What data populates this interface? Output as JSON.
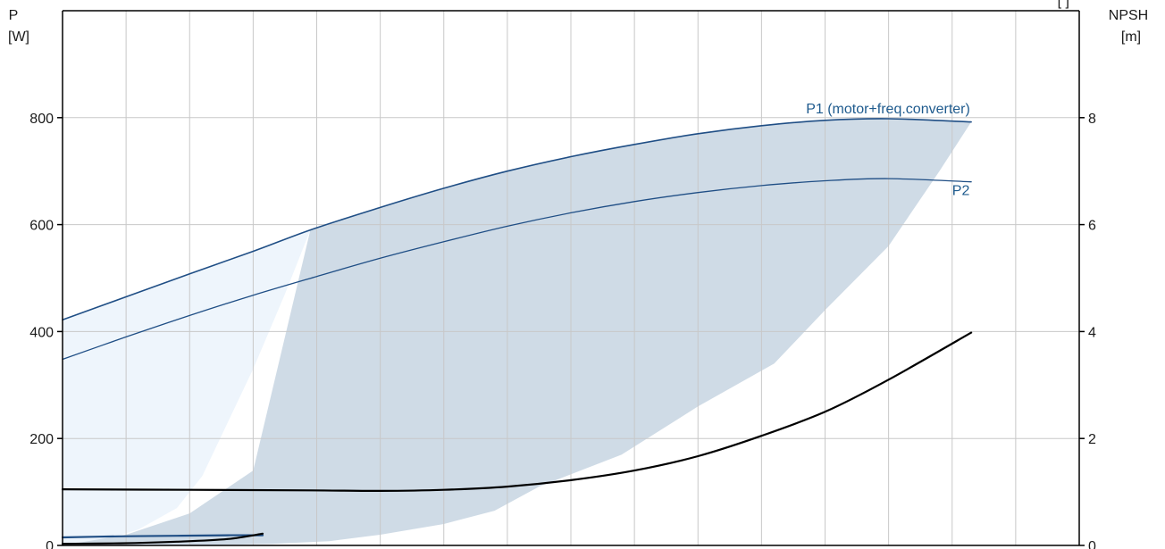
{
  "chart_data": {
    "type": "line",
    "title": "",
    "left_axis": {
      "title_line1": "P",
      "title_line2": "[W]",
      "ylim": [
        0,
        1000
      ],
      "ticks": [
        0,
        200,
        400,
        600,
        800
      ]
    },
    "right_axis": {
      "title_line1": "NPSH",
      "title_line2": "[m]",
      "ylim": [
        0,
        10
      ],
      "ticks": [
        0,
        2,
        4,
        6,
        8
      ]
    },
    "top_right_fragment": "[    ]",
    "x_range": [
      0,
      16
    ],
    "vertical_gridlines": 15,
    "grid": true,
    "colors": {
      "power_curve": "#1f4e85",
      "npsh_curve": "#000000",
      "dark_band": "#cfdbe6",
      "light_band": "#eef5fc",
      "grid": "#c8c8c8"
    },
    "series": [
      {
        "name": "P1 (motor+freq.converter)",
        "axis": "left",
        "x": [
          0,
          1,
          2,
          3,
          3.9,
          5,
          6,
          7,
          8,
          9,
          10,
          11,
          12,
          13,
          14.3
        ],
        "y": [
          422,
          465,
          508,
          550,
          590,
          632,
          668,
          700,
          727,
          750,
          770,
          785,
          795,
          798,
          792
        ]
      },
      {
        "name": "P2",
        "axis": "left",
        "x": [
          0,
          1,
          2,
          3,
          4,
          5,
          6,
          7,
          8,
          9,
          10,
          11,
          12,
          13,
          14.3
        ],
        "y": [
          348,
          390,
          430,
          468,
          503,
          537,
          568,
          597,
          622,
          643,
          660,
          673,
          682,
          686,
          680
        ]
      },
      {
        "name": "",
        "axis": "right",
        "x": [
          0,
          2,
          3.9,
          5,
          6,
          7,
          8,
          9,
          10,
          11,
          12,
          13,
          14.3
        ],
        "y": [
          1.05,
          1.04,
          1.03,
          1.02,
          1.04,
          1.1,
          1.22,
          1.4,
          1.67,
          2.05,
          2.5,
          3.1,
          3.98
        ]
      },
      {
        "name": "",
        "axis": "left",
        "x": [
          0,
          0.9,
          1.8,
          2.6,
          3.15
        ],
        "y": [
          15,
          17,
          18,
          19,
          19
        ]
      },
      {
        "name": "",
        "axis": "right",
        "x": [
          0,
          0.9,
          1.8,
          2.6,
          3.15
        ],
        "y": [
          0.03,
          0.04,
          0.07,
          0.12,
          0.22
        ]
      }
    ],
    "bands": [
      {
        "axis": "left",
        "upper_x": [
          0,
          1,
          2,
          3,
          3.9
        ],
        "upper_y": [
          422,
          465,
          508,
          550,
          590
        ],
        "lower_x": [
          3.9,
          3.5,
          3.0,
          2.6,
          2.2,
          1.8,
          1.2,
          0.6,
          0
        ],
        "lower_y": [
          590,
          470,
          330,
          230,
          130,
          70,
          30,
          8,
          0
        ]
      },
      {
        "axis": "left",
        "upper_x": [
          0,
          1,
          2,
          3,
          3.9,
          5,
          6,
          7,
          8,
          9,
          10,
          11,
          12,
          13,
          14.3
        ],
        "upper_y": [
          0,
          20,
          60,
          140,
          590,
          632,
          668,
          700,
          727,
          750,
          770,
          785,
          795,
          798,
          792
        ],
        "lower_x": [
          14.3,
          13.8,
          13.0,
          12.0,
          11.2,
          10.0,
          8.8,
          7.5,
          6.8,
          6.0,
          5.0,
          4.2,
          3.3,
          2.5,
          1.6,
          0.8,
          0
        ],
        "lower_y": [
          792,
          700,
          560,
          440,
          340,
          260,
          170,
          110,
          65,
          40,
          20,
          8,
          3,
          1,
          0,
          0,
          0
        ]
      }
    ],
    "annotations": [
      {
        "text": "P1 (motor+freq.converter)",
        "x": 11.7,
        "y": 808
      },
      {
        "text": "P2",
        "x": 14.0,
        "y": 655
      }
    ]
  }
}
